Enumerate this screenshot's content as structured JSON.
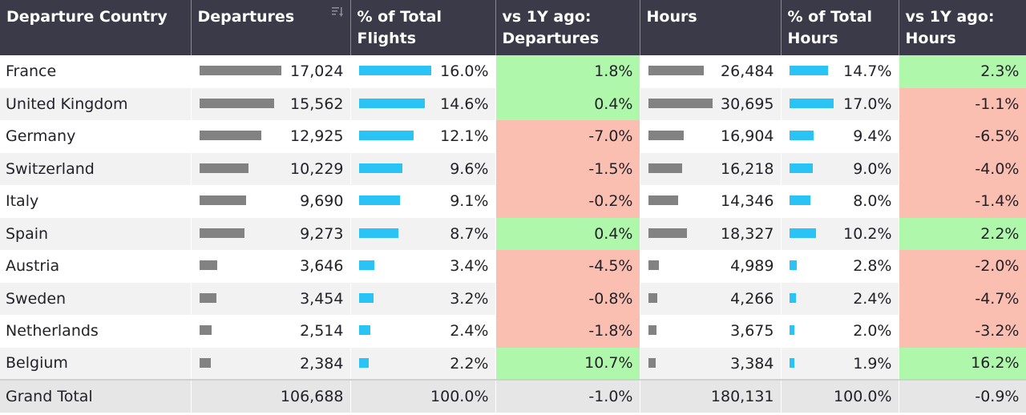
{
  "columns": {
    "country": "Departure Country",
    "departures": "Departures",
    "pct_flights": "% of Total Flights",
    "yoy_departures": "vs 1Y ago: Departures",
    "hours": "Hours",
    "pct_hours": "% of Total Hours",
    "yoy_hours": "vs 1Y ago: Hours"
  },
  "colors": {
    "header_bg": "#3a3a48",
    "positive": "#aff7ab",
    "negative": "#fbbfb2",
    "gray_bar": "#828282",
    "blue_bar": "#29c3f6"
  },
  "rows": [
    {
      "country": "France",
      "departures": "17,024",
      "pct_flights": "16.0%",
      "yoy_departures": "1.8%",
      "hours": "26,484",
      "pct_hours": "14.7%",
      "yoy_hours": "2.3%"
    },
    {
      "country": "United Kingdom",
      "departures": "15,562",
      "pct_flights": "14.6%",
      "yoy_departures": "0.4%",
      "hours": "30,695",
      "pct_hours": "17.0%",
      "yoy_hours": "-1.1%"
    },
    {
      "country": "Germany",
      "departures": "12,925",
      "pct_flights": "12.1%",
      "yoy_departures": "-7.0%",
      "hours": "16,904",
      "pct_hours": "9.4%",
      "yoy_hours": "-6.5%"
    },
    {
      "country": "Switzerland",
      "departures": "10,229",
      "pct_flights": "9.6%",
      "yoy_departures": "-1.5%",
      "hours": "16,218",
      "pct_hours": "9.0%",
      "yoy_hours": "-4.0%"
    },
    {
      "country": "Italy",
      "departures": "9,690",
      "pct_flights": "9.1%",
      "yoy_departures": "-0.2%",
      "hours": "14,346",
      "pct_hours": "8.0%",
      "yoy_hours": "-1.4%"
    },
    {
      "country": "Spain",
      "departures": "9,273",
      "pct_flights": "8.7%",
      "yoy_departures": "0.4%",
      "hours": "18,327",
      "pct_hours": "10.2%",
      "yoy_hours": "2.2%"
    },
    {
      "country": "Austria",
      "departures": "3,646",
      "pct_flights": "3.4%",
      "yoy_departures": "-4.5%",
      "hours": "4,989",
      "pct_hours": "2.8%",
      "yoy_hours": "-2.0%"
    },
    {
      "country": "Sweden",
      "departures": "3,454",
      "pct_flights": "3.2%",
      "yoy_departures": "-0.8%",
      "hours": "4,266",
      "pct_hours": "2.4%",
      "yoy_hours": "-4.7%"
    },
    {
      "country": "Netherlands",
      "departures": "2,514",
      "pct_flights": "2.4%",
      "yoy_departures": "-1.8%",
      "hours": "3,675",
      "pct_hours": "2.0%",
      "yoy_hours": "-3.2%"
    },
    {
      "country": "Belgium",
      "departures": "2,384",
      "pct_flights": "2.2%",
      "yoy_departures": "10.7%",
      "hours": "3,384",
      "pct_hours": "1.9%",
      "yoy_hours": "16.2%"
    }
  ],
  "total": {
    "label": "Grand Total",
    "departures": "106,688",
    "pct_flights": "100.0%",
    "yoy_departures": "-1.0%",
    "hours": "180,131",
    "pct_hours": "100.0%",
    "yoy_hours": "-0.9%"
  }
}
